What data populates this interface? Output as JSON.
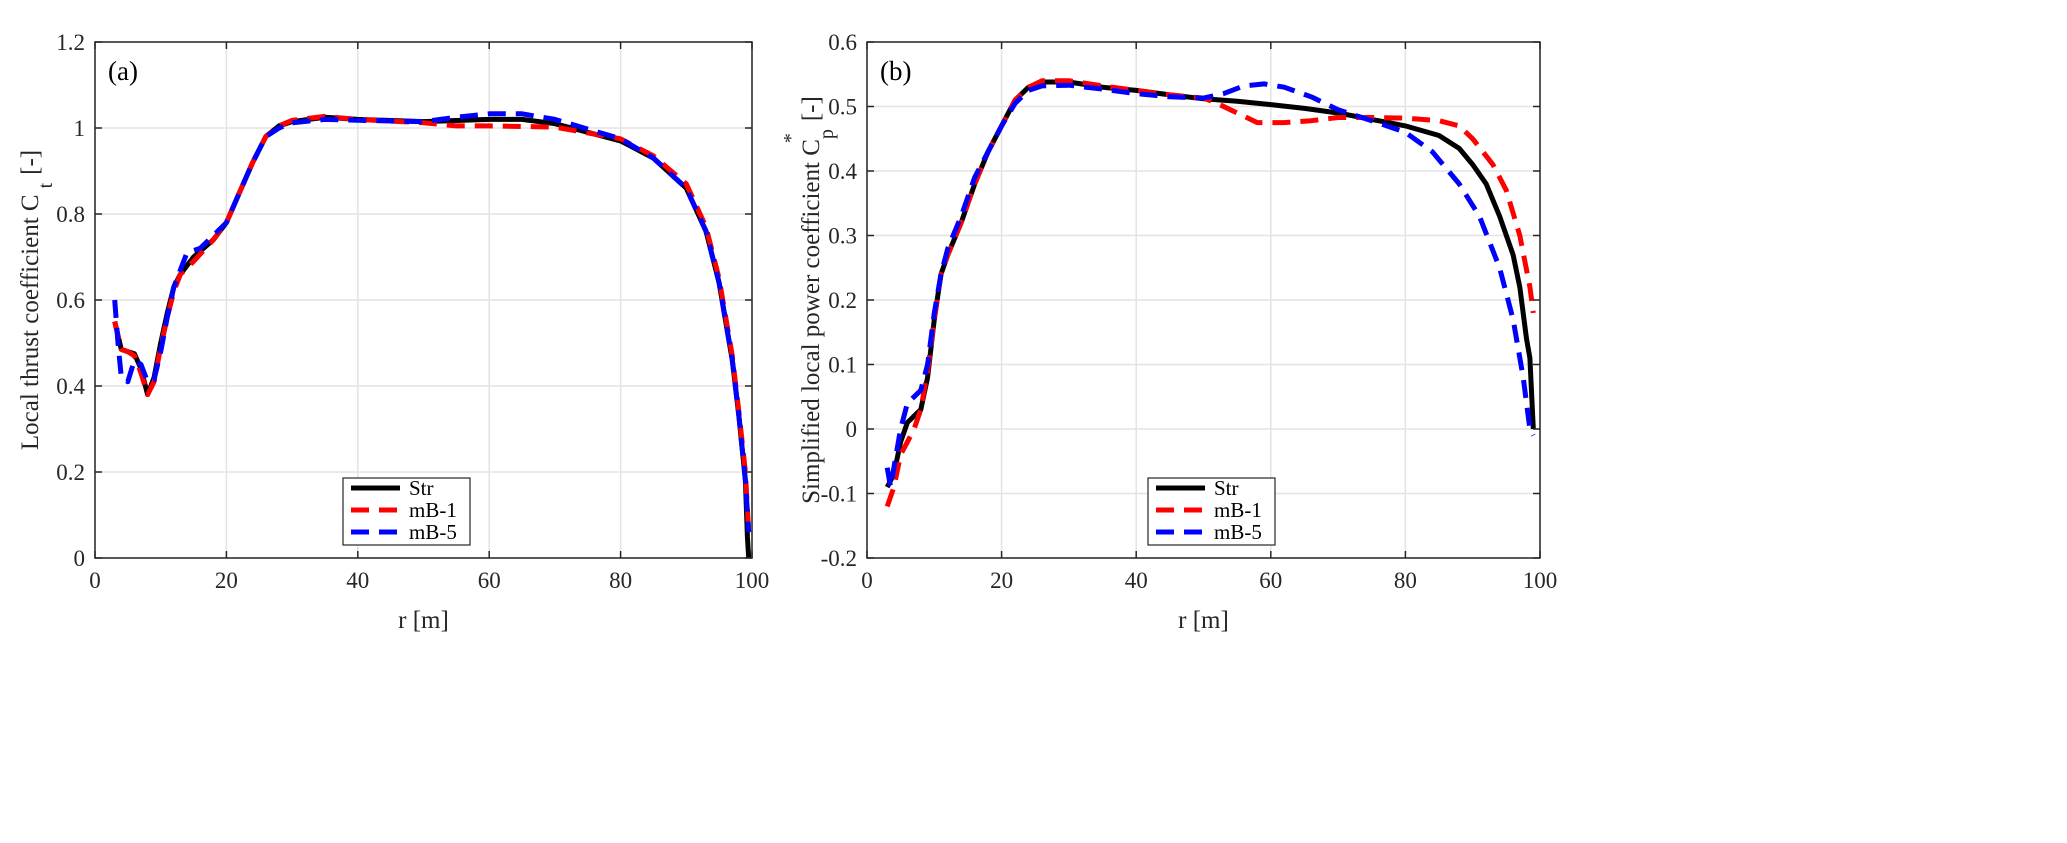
{
  "chart_data": [
    {
      "type": "line",
      "panel_label": "(a)",
      "xlabel": "r [m]",
      "ylabel": "Local thrust coefficient C",
      "ylabel_sub": "t",
      "ylabel_unit": "[-]",
      "xlim": [
        0,
        100
      ],
      "ylim": [
        0,
        1.2
      ],
      "xticks": [
        "0",
        "20",
        "40",
        "60",
        "80",
        "100"
      ],
      "xtick_values": [
        0,
        20,
        40,
        60,
        80,
        100
      ],
      "yticks": [
        "0",
        "0.2",
        "0.4",
        "0.6",
        "0.8",
        "1",
        "1.2"
      ],
      "ytick_values": [
        0,
        0.2,
        0.4,
        0.6,
        0.8,
        1.0,
        1.2
      ],
      "grid": true,
      "legend_position": "bottom-center",
      "series": [
        {
          "name": "Str",
          "color": "#000000",
          "dash": "solid",
          "x": [
            3,
            4,
            5,
            6,
            7,
            8,
            9,
            10,
            11,
            12,
            13,
            15,
            18,
            20,
            22,
            24,
            26,
            28,
            30,
            35,
            40,
            50,
            60,
            65,
            70,
            80,
            85,
            90,
            93,
            95,
            97,
            98,
            99,
            99.3,
            99.5
          ],
          "y": [
            0.55,
            0.485,
            0.48,
            0.475,
            0.44,
            0.38,
            0.42,
            0.5,
            0.57,
            0.63,
            0.66,
            0.7,
            0.74,
            0.78,
            0.85,
            0.92,
            0.98,
            1.005,
            1.015,
            1.025,
            1.02,
            1.015,
            1.02,
            1.02,
            1.01,
            0.97,
            0.93,
            0.86,
            0.76,
            0.64,
            0.46,
            0.33,
            0.18,
            0.05,
            0.0
          ]
        },
        {
          "name": "mB-1",
          "color": "#ff0000",
          "dash": "dashed",
          "x": [
            3,
            4,
            5,
            6,
            7,
            8,
            9,
            10,
            11,
            12,
            13,
            15,
            18,
            20,
            22,
            24,
            26,
            28,
            30,
            35,
            40,
            50,
            55,
            60,
            70,
            80,
            85,
            90,
            93,
            95,
            97,
            98,
            99,
            99.5
          ],
          "y": [
            0.55,
            0.485,
            0.48,
            0.47,
            0.43,
            0.38,
            0.41,
            0.49,
            0.56,
            0.62,
            0.66,
            0.69,
            0.74,
            0.78,
            0.85,
            0.92,
            0.98,
            1.005,
            1.018,
            1.027,
            1.02,
            1.012,
            1.005,
            1.005,
            1.002,
            0.975,
            0.935,
            0.87,
            0.77,
            0.65,
            0.47,
            0.34,
            0.2,
            0.06
          ]
        },
        {
          "name": "mB-5",
          "color": "#0000ff",
          "dash": "dashed",
          "x": [
            3,
            3.5,
            4,
            5,
            6,
            7,
            8,
            9,
            10,
            11,
            12,
            14,
            16,
            18,
            20,
            22,
            24,
            26,
            28,
            30,
            35,
            40,
            50,
            55,
            60,
            65,
            70,
            80,
            85,
            90,
            93,
            95,
            97,
            98,
            99,
            99.5
          ],
          "y": [
            0.6,
            0.5,
            0.42,
            0.41,
            0.46,
            0.45,
            0.41,
            0.415,
            0.48,
            0.56,
            0.63,
            0.71,
            0.72,
            0.75,
            0.78,
            0.85,
            0.92,
            0.98,
            1.0,
            1.012,
            1.02,
            1.018,
            1.015,
            1.025,
            1.033,
            1.033,
            1.02,
            0.975,
            0.93,
            0.86,
            0.76,
            0.64,
            0.46,
            0.33,
            0.18,
            0.06
          ]
        }
      ],
      "legend": [
        "Str",
        "mB-1",
        "mB-5"
      ]
    },
    {
      "type": "line",
      "panel_label": "(b)",
      "xlabel": "r [m]",
      "ylabel": "Simplified local power coefficient C",
      "ylabel_sub": "p",
      "ylabel_sup": "*",
      "ylabel_unit": "[-]",
      "xlim": [
        0,
        100
      ],
      "ylim": [
        -0.2,
        0.6
      ],
      "xticks": [
        "0",
        "20",
        "40",
        "60",
        "80",
        "100"
      ],
      "xtick_values": [
        0,
        20,
        40,
        60,
        80,
        100
      ],
      "yticks": [
        "-0.2",
        "-0.1",
        "0",
        "0.1",
        "0.2",
        "0.3",
        "0.4",
        "0.5",
        "0.6"
      ],
      "ytick_values": [
        -0.2,
        -0.1,
        0,
        0.1,
        0.2,
        0.3,
        0.4,
        0.5,
        0.6
      ],
      "grid": true,
      "legend_position": "bottom-center",
      "series": [
        {
          "name": "Str",
          "color": "#000000",
          "dash": "solid",
          "x": [
            3,
            4,
            5,
            6,
            7,
            8,
            9,
            10,
            11,
            12,
            14,
            16,
            18,
            20,
            22,
            24,
            26,
            30,
            35,
            40,
            45,
            50,
            55,
            60,
            65,
            70,
            75,
            80,
            85,
            88,
            90,
            92,
            94,
            96,
            97,
            98,
            98.5,
            99
          ],
          "y": [
            -0.09,
            -0.07,
            -0.02,
            0.01,
            0.02,
            0.03,
            0.08,
            0.17,
            0.24,
            0.27,
            0.32,
            0.38,
            0.43,
            0.47,
            0.51,
            0.53,
            0.538,
            0.538,
            0.53,
            0.525,
            0.518,
            0.512,
            0.508,
            0.503,
            0.497,
            0.49,
            0.48,
            0.47,
            0.455,
            0.435,
            0.41,
            0.38,
            0.33,
            0.27,
            0.22,
            0.14,
            0.11,
            0.0
          ]
        },
        {
          "name": "mB-1",
          "color": "#ff0000",
          "dash": "dashed",
          "x": [
            3,
            4,
            5,
            6,
            7,
            8,
            9,
            10,
            11,
            12,
            14,
            16,
            18,
            20,
            22,
            24,
            26,
            30,
            35,
            40,
            45,
            50,
            52,
            55,
            58,
            62,
            66,
            70,
            75,
            80,
            85,
            88,
            90,
            93,
            95,
            97,
            98.5,
            99
          ],
          "y": [
            -0.12,
            -0.09,
            -0.04,
            -0.02,
            0.0,
            0.03,
            0.09,
            0.17,
            0.24,
            0.27,
            0.32,
            0.38,
            0.43,
            0.47,
            0.51,
            0.53,
            0.54,
            0.54,
            0.532,
            0.525,
            0.518,
            0.513,
            0.505,
            0.49,
            0.475,
            0.475,
            0.478,
            0.483,
            0.483,
            0.482,
            0.478,
            0.47,
            0.45,
            0.41,
            0.37,
            0.3,
            0.22,
            0.18
          ]
        },
        {
          "name": "mB-5",
          "color": "#0000ff",
          "dash": "dashed",
          "x": [
            3,
            3.5,
            4,
            5,
            6,
            7,
            8,
            9,
            10,
            11,
            12,
            14,
            16,
            18,
            20,
            22,
            24,
            26,
            30,
            35,
            40,
            45,
            50,
            53,
            56,
            59,
            62,
            66,
            70,
            75,
            80,
            84,
            88,
            91,
            94,
            96,
            97.5,
            98.5,
            99
          ],
          "y": [
            -0.06,
            -0.09,
            -0.06,
            0.0,
            0.04,
            0.05,
            0.06,
            0.1,
            0.18,
            0.24,
            0.28,
            0.33,
            0.39,
            0.43,
            0.47,
            0.505,
            0.525,
            0.532,
            0.533,
            0.527,
            0.52,
            0.515,
            0.513,
            0.52,
            0.532,
            0.535,
            0.53,
            0.515,
            0.495,
            0.478,
            0.46,
            0.43,
            0.38,
            0.33,
            0.25,
            0.17,
            0.08,
            0.0,
            -0.01
          ]
        }
      ],
      "legend": [
        "Str",
        "mB-1",
        "mB-5"
      ]
    }
  ]
}
